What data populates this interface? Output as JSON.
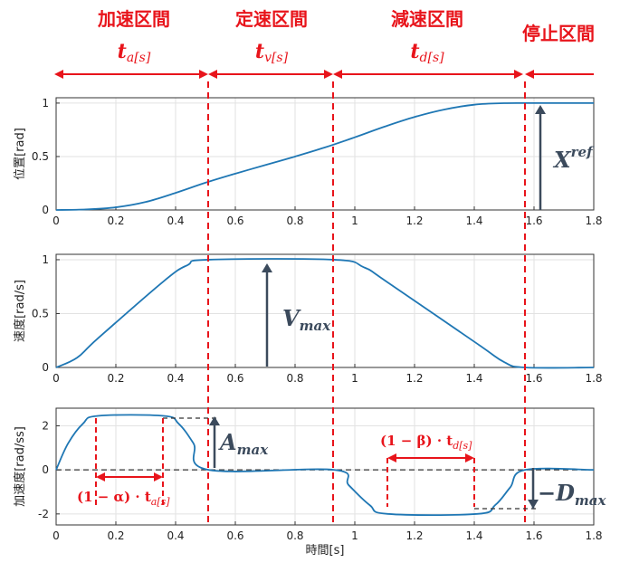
{
  "phases": [
    {
      "name": "加速区間",
      "t_symbol": "t",
      "t_sub": "a[s]"
    },
    {
      "name": "定速区間",
      "t_symbol": "t",
      "t_sub": "v[s]"
    },
    {
      "name": "減速区間",
      "t_symbol": "t",
      "t_sub": "d[s]"
    },
    {
      "name": "停止区間"
    }
  ],
  "annotations": {
    "xref": {
      "base": "X",
      "sup": "ref"
    },
    "vmax": {
      "base": "V",
      "sub": "max"
    },
    "amax": {
      "base": "A",
      "sub": "max"
    },
    "dmax": {
      "base": "−D",
      "sub": "max"
    },
    "alpha_label": {
      "main": "(1 − α) · t",
      "sub": "a[s]"
    },
    "beta_label": {
      "main": "(1 − β) · t",
      "sub": "d[s]"
    }
  },
  "colors": {
    "line": "#1f77b4",
    "red": "#e8141b",
    "arrow": "#3b4a5c",
    "dash_black": "#333333"
  },
  "chart_data": [
    {
      "type": "line",
      "ylabel": "位置[rad]",
      "xlabel": "",
      "xlim": [
        0,
        1.8
      ],
      "ylim": [
        0,
        1.05
      ],
      "xticks": [
        0,
        0.2,
        0.4,
        0.6,
        0.8,
        1,
        1.2,
        1.4,
        1.6,
        1.8
      ],
      "yticks": [
        0,
        0.5,
        1
      ],
      "grid": true,
      "x": [
        0,
        0.1,
        0.2,
        0.3,
        0.4,
        0.5,
        0.6,
        0.7,
        0.8,
        0.9,
        1.0,
        1.1,
        1.2,
        1.3,
        1.4,
        1.5,
        1.6,
        1.8
      ],
      "y": [
        0,
        0.005,
        0.025,
        0.075,
        0.16,
        0.255,
        0.34,
        0.42,
        0.5,
        0.585,
        0.68,
        0.78,
        0.87,
        0.94,
        0.985,
        0.999,
        1,
        1
      ]
    },
    {
      "type": "line",
      "ylabel": "速度[rad/s]",
      "xlabel": "",
      "xlim": [
        0,
        1.8
      ],
      "ylim": [
        0,
        1.05
      ],
      "xticks": [
        0,
        0.2,
        0.4,
        0.6,
        0.8,
        1,
        1.2,
        1.4,
        1.6,
        1.8
      ],
      "yticks": [
        0,
        0.5,
        1
      ],
      "grid": true,
      "x": [
        0,
        0.07,
        0.14,
        0.36,
        0.44,
        0.51,
        0.93,
        1.03,
        1.11,
        1.41,
        1.5,
        1.57,
        1.8
      ],
      "y": [
        0,
        0.09,
        0.27,
        0.8,
        0.95,
        1,
        1,
        0.93,
        0.79,
        0.22,
        0.05,
        0,
        0
      ]
    },
    {
      "type": "line",
      "ylabel": "加速度[rad/ss]",
      "xlabel": "時間[s]",
      "xlim": [
        0,
        1.8
      ],
      "ylim": [
        -2.5,
        2.8
      ],
      "xticks": [
        0,
        0.2,
        0.4,
        0.6,
        0.8,
        1,
        1.2,
        1.4,
        1.6,
        1.8
      ],
      "yticks": [
        -2,
        0,
        2
      ],
      "grid": true,
      "x": [
        0,
        0.04,
        0.09,
        0.14,
        0.36,
        0.41,
        0.46,
        0.51,
        0.93,
        0.98,
        1.05,
        1.11,
        1.41,
        1.47,
        1.52,
        1.57,
        1.8
      ],
      "y": [
        0,
        1.2,
        2.1,
        2.45,
        2.45,
        2.1,
        1.2,
        0,
        0,
        -0.7,
        -1.6,
        -2.0,
        -2.0,
        -1.6,
        -0.8,
        0,
        0
      ]
    }
  ]
}
